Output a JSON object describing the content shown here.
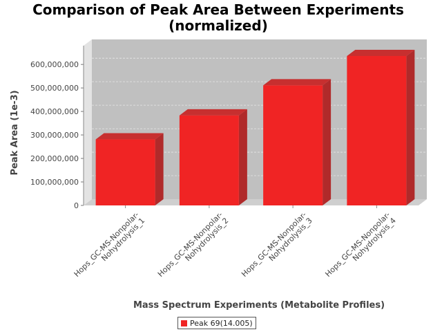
{
  "chart_data": {
    "type": "bar",
    "title": "Comparison of Peak Area Between Experiments",
    "subtitle": "(normalized)",
    "xlabel": "Mass Spectrum Experiments (Metabolite Profiles)",
    "ylabel": "Peak Area (1e-3)",
    "categories": [
      [
        "Hops_GC-MS-Nonpolar-",
        "Nohydrolysis_1"
      ],
      [
        "Hops_GC-MS-Nonpolar-",
        "Nohydrolysis_2"
      ],
      [
        "Hops_GC-MS-Nonpolar-",
        "Nohydrolysis_3"
      ],
      [
        "Hops_GC-MS-Nonpolar-",
        "Nohydrolysis_4"
      ]
    ],
    "series": [
      {
        "name": "Peak 69(14.005)",
        "values": [
          281000000,
          383000000,
          511000000,
          636000000
        ],
        "color": "#f02424"
      }
    ],
    "ylim": [
      0,
      680000000
    ],
    "yticks": [
      0,
      100000000,
      200000000,
      300000000,
      400000000,
      500000000,
      600000000
    ],
    "ytick_labels": [
      "0",
      "100,000,000",
      "200,000,000",
      "300,000,000",
      "400,000,000",
      "500,000,000",
      "600,000,000"
    ],
    "grid": true,
    "legend_position": "bottom",
    "style": "3d",
    "colors": {
      "plot_background": "#c0c0c0",
      "grid": "#e6e6e6"
    }
  }
}
